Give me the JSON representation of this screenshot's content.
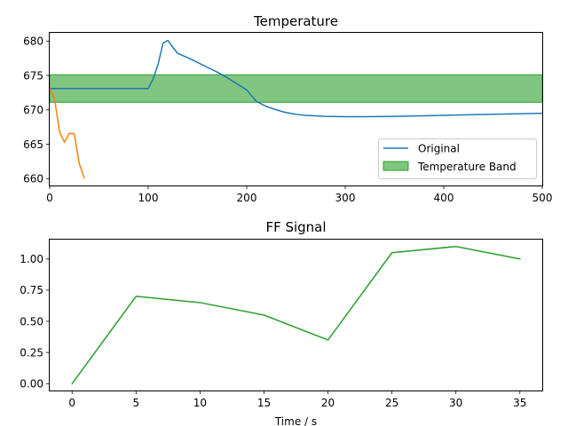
{
  "chart_data": [
    {
      "type": "line",
      "title": "Temperature",
      "xlabel": "",
      "ylabel": "",
      "xlim": [
        0,
        500
      ],
      "ylim": [
        659.0,
        681.2
      ],
      "x_ticks": [
        "0",
        "100",
        "200",
        "300",
        "400",
        "500"
      ],
      "y_ticks": [
        "660",
        "665",
        "670",
        "675",
        "680"
      ],
      "grid": false,
      "legend_position": "center-right",
      "band": {
        "name": "Temperature Band",
        "y_min": 671.1,
        "y_max": 675.1,
        "color": "#2ca02c"
      },
      "series": [
        {
          "name": "Original",
          "color": "#1f77b4",
          "x": [
            0,
            100,
            105,
            110,
            115,
            120,
            125,
            130,
            140,
            150,
            160,
            170,
            180,
            190,
            200,
            210,
            220,
            230,
            240,
            250,
            260,
            280,
            300,
            320,
            350,
            400,
            450,
            500
          ],
          "y": [
            673.1,
            673.1,
            674.5,
            676.6,
            679.7,
            680.1,
            679.1,
            678.2,
            677.6,
            676.9,
            676.2,
            675.5,
            674.7,
            673.8,
            672.9,
            671.2,
            670.5,
            670.0,
            669.6,
            669.35,
            669.2,
            669.05,
            669.0,
            669.0,
            669.05,
            669.2,
            669.35,
            669.5
          ]
        },
        {
          "name": "",
          "color": "#ff7f0e",
          "x": [
            0,
            5,
            10,
            15,
            20,
            25,
            30,
            35
          ],
          "y": [
            673.1,
            671.5,
            666.8,
            665.3,
            666.6,
            666.5,
            662.2,
            660.1
          ]
        }
      ]
    },
    {
      "type": "line",
      "title": "FF Signal",
      "xlabel": "Time / s",
      "ylabel": "",
      "xlim": [
        -1.75,
        36.75
      ],
      "ylim": [
        -0.055,
        1.155
      ],
      "x_ticks": [
        "0",
        "5",
        "10",
        "15",
        "20",
        "25",
        "30",
        "35"
      ],
      "y_ticks": [
        "0.00",
        "0.25",
        "0.50",
        "0.75",
        "1.00"
      ],
      "grid": false,
      "series": [
        {
          "name": "",
          "color": "#2ca02c",
          "x": [
            0,
            5,
            10,
            15,
            20,
            25,
            30,
            35
          ],
          "y": [
            0.0,
            0.7,
            0.65,
            0.55,
            0.35,
            1.05,
            1.1,
            1.0
          ]
        }
      ]
    }
  ]
}
